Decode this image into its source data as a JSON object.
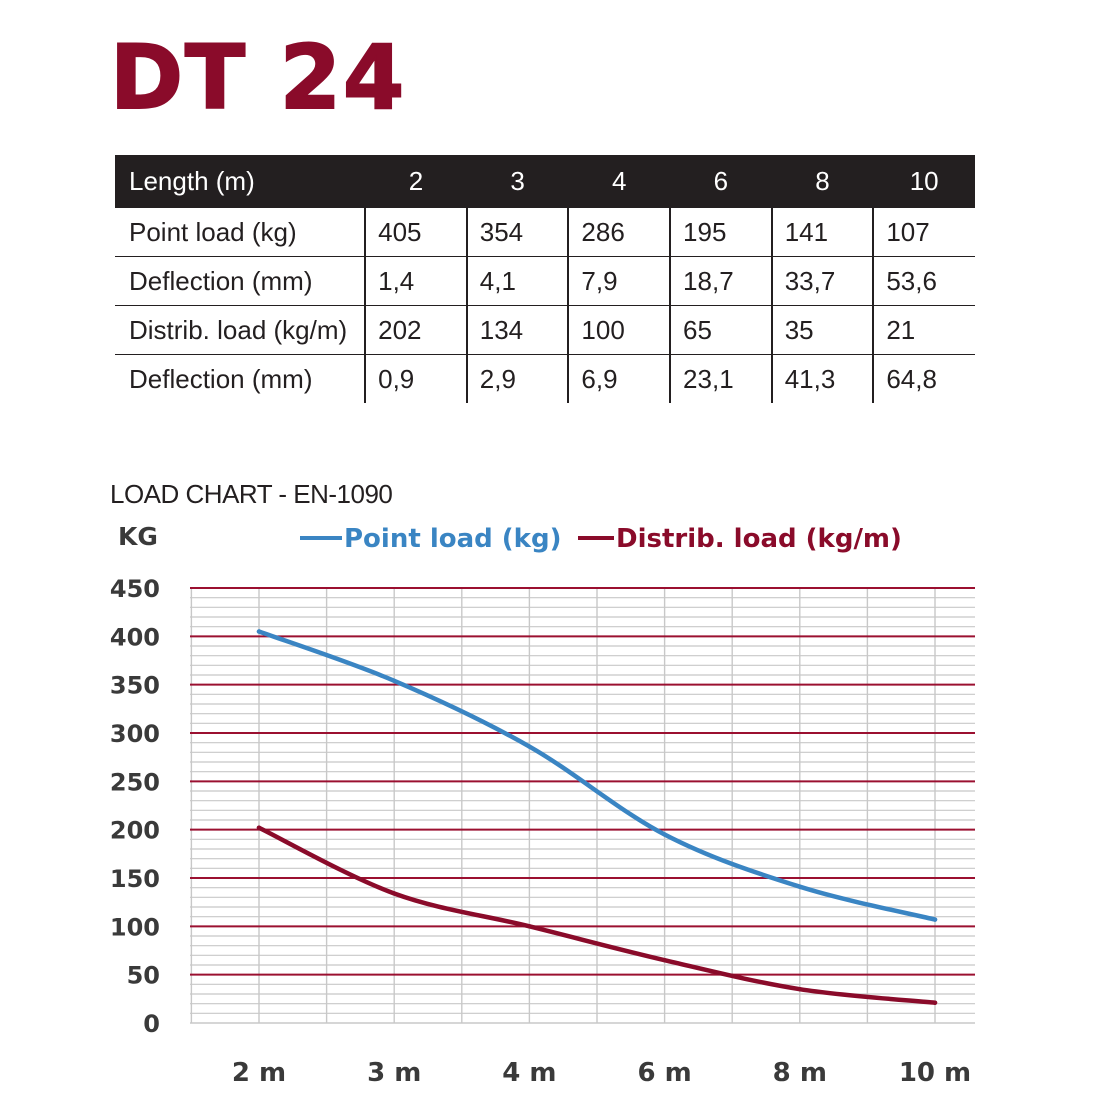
{
  "product_title": "DT 24",
  "spec_table": {
    "header": {
      "label": "Length (m)",
      "values": [
        "2",
        "3",
        "4",
        "6",
        "8",
        "10"
      ]
    },
    "rows": [
      {
        "label": "Point load (kg)",
        "values": [
          "405",
          "354",
          "286",
          "195",
          "141",
          "107"
        ]
      },
      {
        "label": "Deflection (mm)",
        "values": [
          "1,4",
          "4,1",
          "7,9",
          "18,7",
          "33,7",
          "53,6"
        ]
      },
      {
        "label": "Distrib. load (kg/m)",
        "values": [
          "202",
          "134",
          "100",
          "65",
          "35",
          "21"
        ]
      },
      {
        "label": "Deflection (mm)",
        "values": [
          "0,9",
          "2,9",
          "6,9",
          "23,1",
          "41,3",
          "64,8"
        ]
      }
    ]
  },
  "chart_caption": "LOAD CHART - EN-1090",
  "chart_data": {
    "type": "line",
    "ylabel": "KG",
    "categories": [
      "2 m",
      "3 m",
      "4 m",
      "6 m",
      "8 m",
      "10 m"
    ],
    "yticks": [
      "0",
      "50",
      "100",
      "150",
      "200",
      "250",
      "300",
      "350",
      "400",
      "450"
    ],
    "ylim": [
      0,
      450
    ],
    "grid": true,
    "legend_position": "top",
    "series": [
      {
        "name": "Point load (kg)",
        "color": "#3a85c3",
        "values": [
          405,
          354,
          286,
          195,
          141,
          107
        ]
      },
      {
        "name": "Distrib. load (kg/m)",
        "color": "#8a0b2a",
        "values": [
          202,
          134,
          100,
          65,
          35,
          21
        ]
      }
    ],
    "grid_major_color": "#9b1030",
    "grid_minor_color": "#c8c8c8"
  }
}
